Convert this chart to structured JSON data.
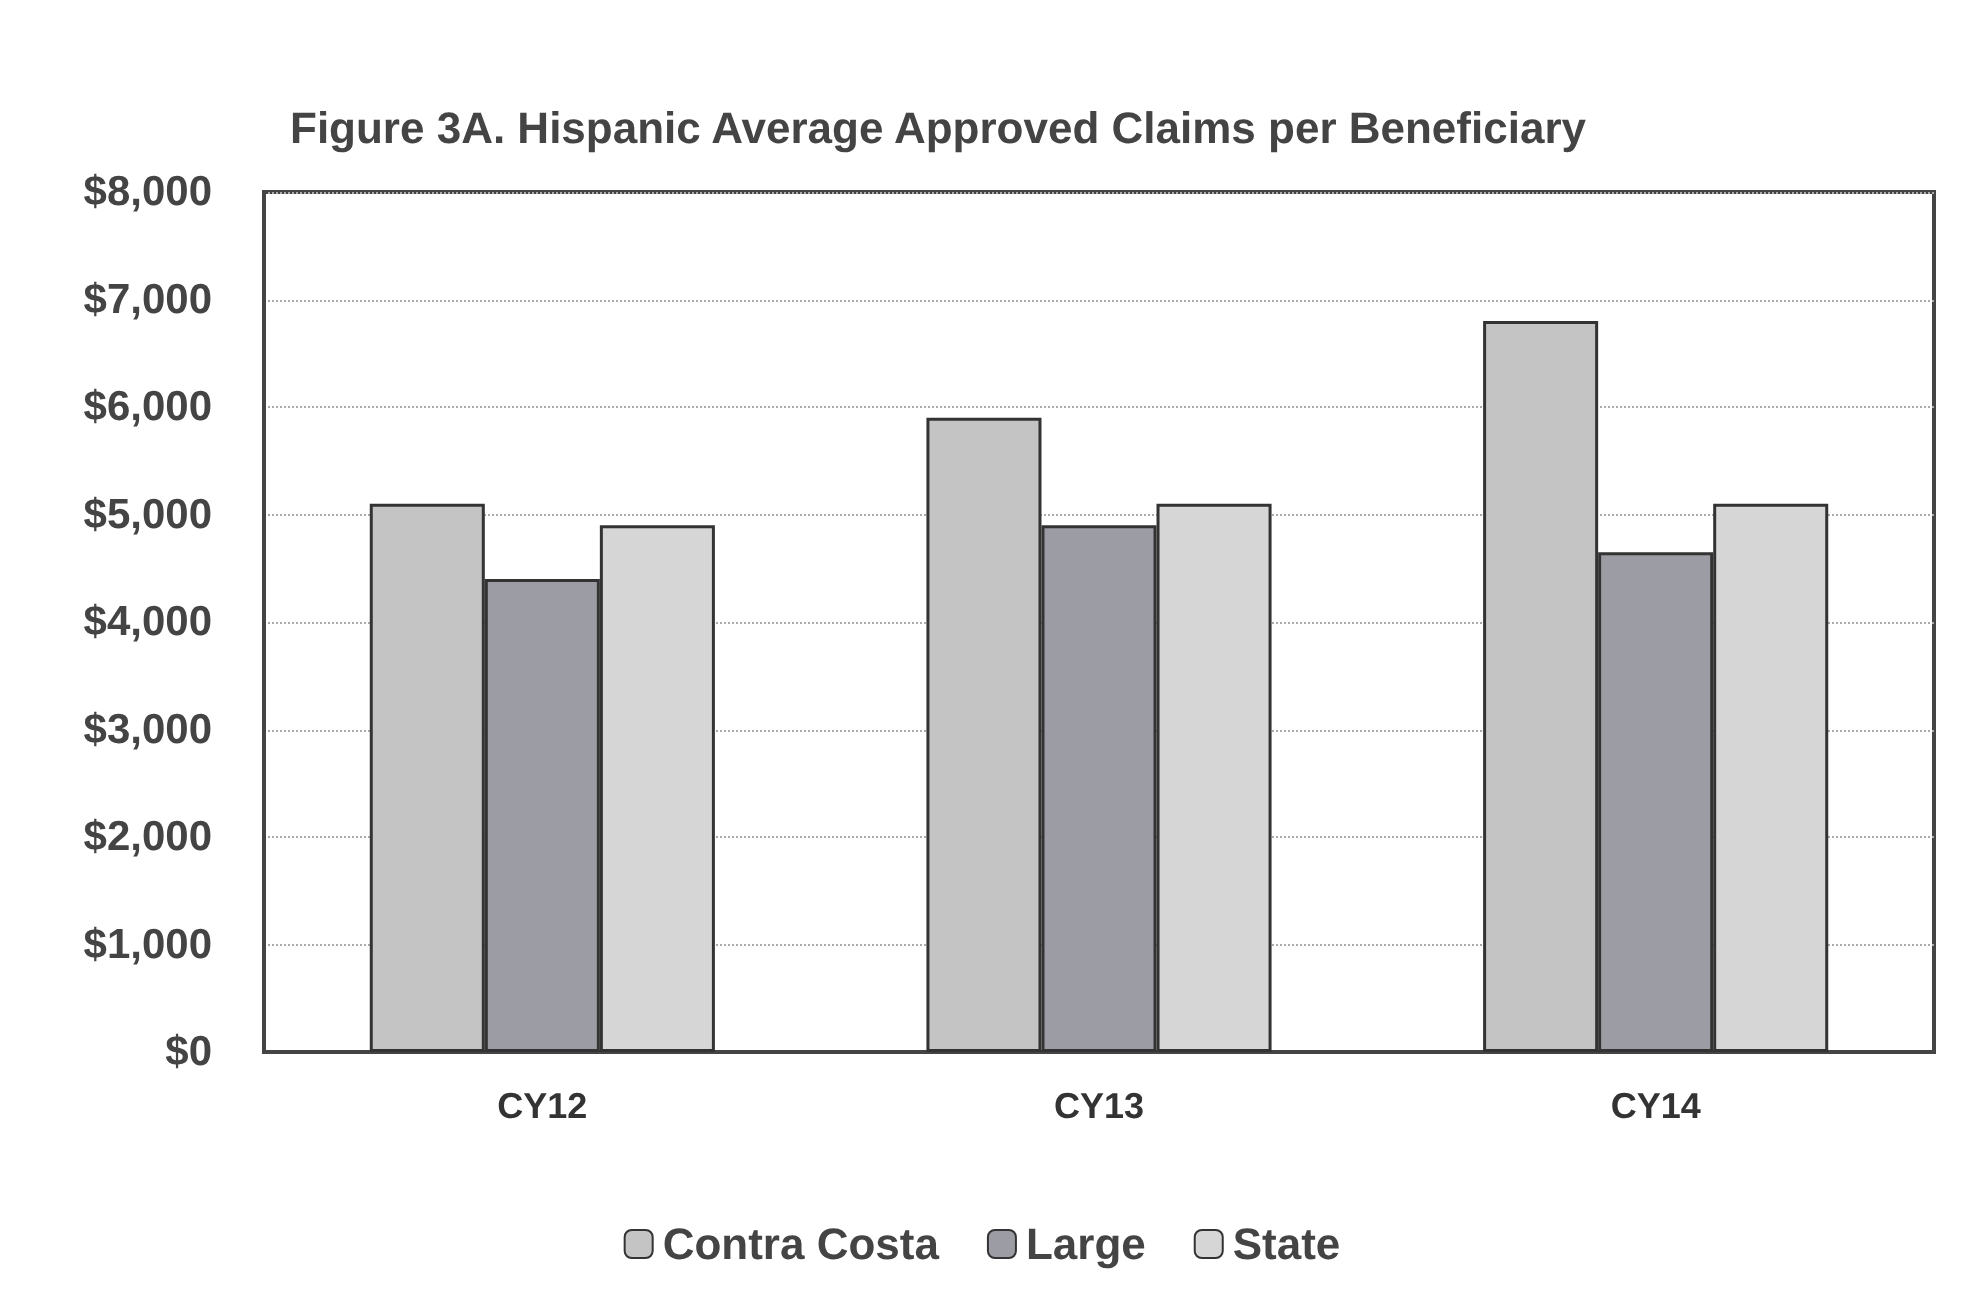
{
  "chart_data": {
    "type": "bar",
    "title": "Figure 3A. Hispanic Average Approved Claims per Beneficiary",
    "categories": [
      "CY12",
      "CY13",
      "CY14"
    ],
    "series": [
      {
        "name": "Contra Costa",
        "color": "#c4c4c4",
        "values": [
          5100,
          5900,
          6800
        ]
      },
      {
        "name": "Large",
        "color": "#9c9ca4",
        "values": [
          4400,
          4900,
          4650
        ]
      },
      {
        "name": "State",
        "color": "#d6d6d6",
        "values": [
          4900,
          5100,
          5100
        ]
      }
    ],
    "ylim": [
      0,
      8000
    ],
    "yticks": [
      {
        "value": 0,
        "label": "$0"
      },
      {
        "value": 1000,
        "label": "$1,000"
      },
      {
        "value": 2000,
        "label": "$2,000"
      },
      {
        "value": 3000,
        "label": "$3,000"
      },
      {
        "value": 4000,
        "label": "$4,000"
      },
      {
        "value": 5000,
        "label": "$5,000"
      },
      {
        "value": 6000,
        "label": "$6,000"
      },
      {
        "value": 7000,
        "label": "$7,000"
      },
      {
        "value": 8000,
        "label": "$8,000"
      }
    ],
    "grid": "y",
    "legend": "bottom"
  }
}
